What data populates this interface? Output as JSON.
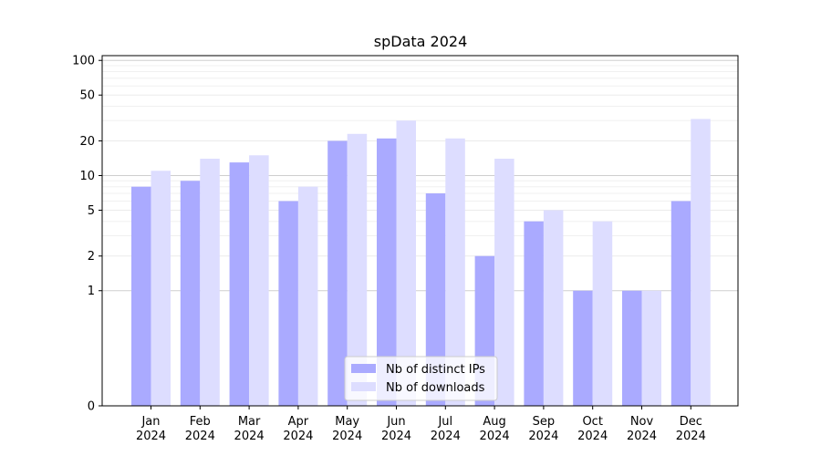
{
  "chart_data": {
    "type": "bar",
    "title": "spData 2024",
    "xlabel": "",
    "ylabel": "",
    "y_scale": "symlog",
    "ylim": [
      0,
      110
    ],
    "y_ticks": [
      0,
      1,
      2,
      5,
      10,
      20,
      50,
      100
    ],
    "y_tick_labels": [
      "0",
      "1",
      "2",
      "5",
      "10",
      "20",
      "50",
      "100"
    ],
    "categories": [
      "Jan\n2024",
      "Feb\n2024",
      "Mar\n2024",
      "Apr\n2024",
      "May\n2024",
      "Jun\n2024",
      "Jul\n2024",
      "Aug\n2024",
      "Sep\n2024",
      "Oct\n2024",
      "Nov\n2024",
      "Dec\n2024"
    ],
    "series": [
      {
        "name": "Nb of distinct IPs",
        "color": "#aaaaff",
        "values": [
          8,
          9,
          13,
          6,
          20,
          21,
          7,
          2,
          4,
          1,
          1,
          6
        ]
      },
      {
        "name": "Nb of downloads",
        "color": "#ddddff",
        "values": [
          11,
          14,
          15,
          8,
          23,
          30,
          21,
          14,
          5,
          4,
          1,
          31
        ]
      }
    ],
    "grid": true,
    "legend_position": "bottom-center"
  }
}
